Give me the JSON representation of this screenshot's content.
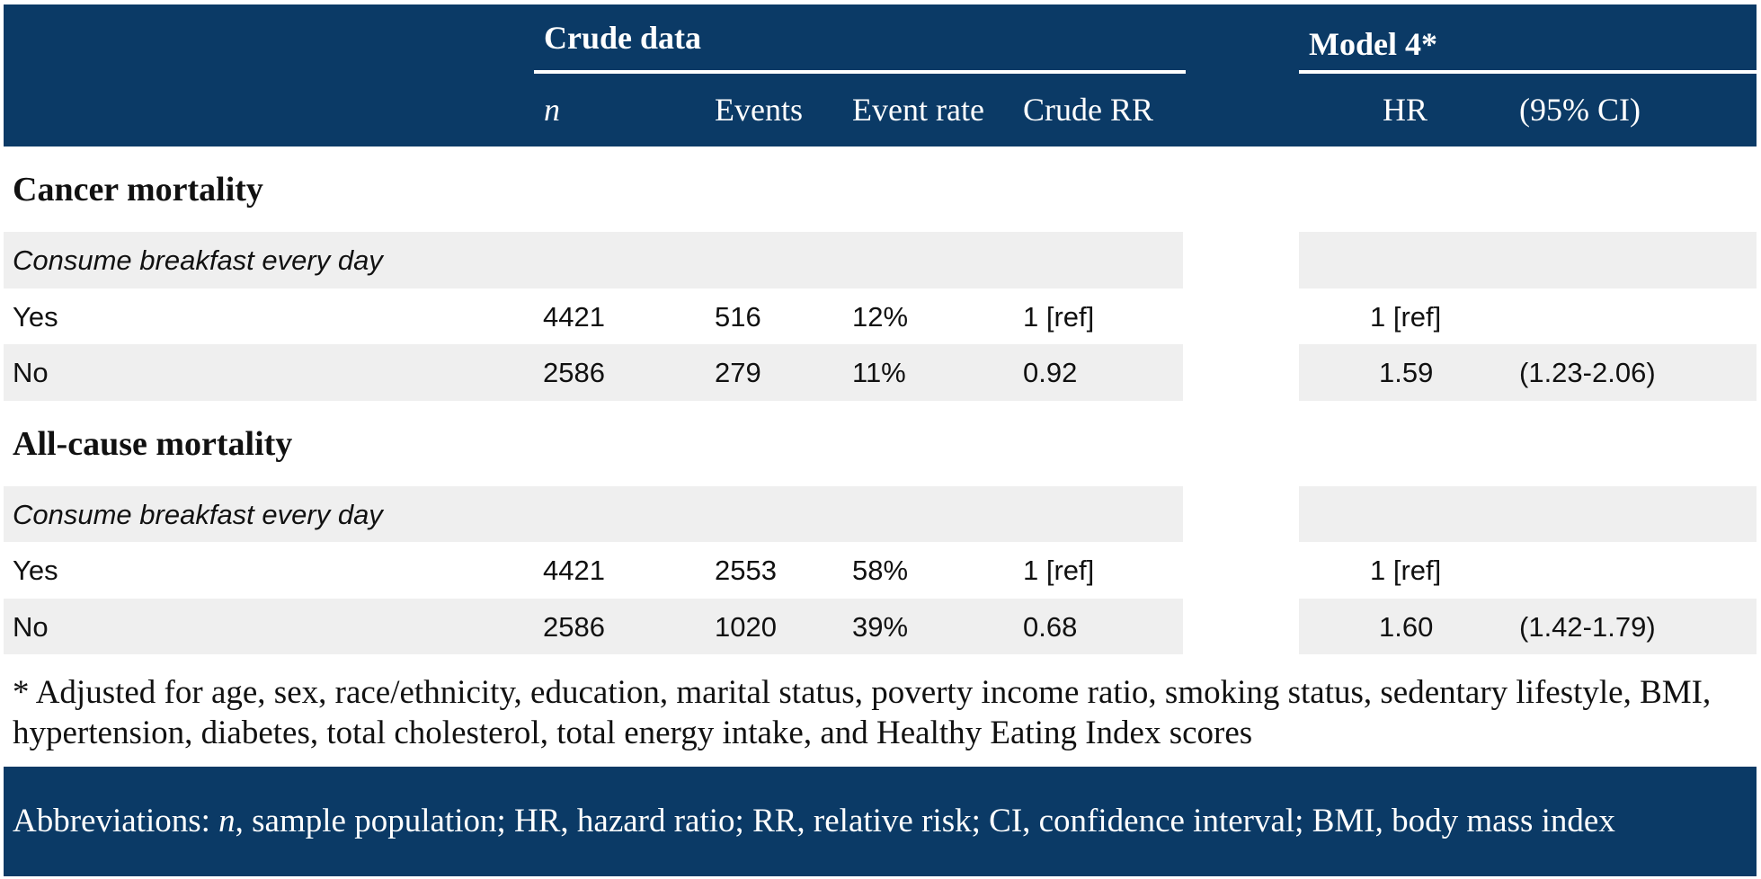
{
  "header": {
    "groups": [
      "Crude data",
      "Model 4*"
    ],
    "columns": [
      "n",
      "Events",
      "Event rate",
      "Crude RR",
      "HR",
      "(95% CI)"
    ]
  },
  "sections": [
    {
      "title": "Cancer mortality",
      "subtitle": "Consume breakfast every day",
      "rows": [
        {
          "label": "Yes",
          "cells": [
            "4421",
            "516",
            "12%",
            "1 [ref]",
            "1 [ref]"
          ]
        },
        {
          "label": "No",
          "cells": [
            "2586",
            "279",
            "11%",
            "0.92",
            "1.59",
            "(1.23-2.06)"
          ]
        }
      ]
    },
    {
      "title": "All-cause mortality",
      "subtitle": "Consume breakfast every day",
      "rows": [
        {
          "label": "Yes",
          "cells": [
            "4421",
            "2553",
            "58%",
            "1 [ref]",
            "1 [ref]"
          ]
        },
        {
          "label": "No",
          "cells": [
            "2586",
            "1020",
            "39%",
            "0.68",
            "1.60",
            "(1.42-1.79)"
          ]
        }
      ]
    }
  ],
  "footnote": "* Adjusted for age, sex, race/ethnicity, education, marital status, poverty income ratio, smoking status, sedentary lifestyle, BMI, hypertension, diabetes, total cholesterol, total energy intake, and Healthy Eating Index scores",
  "abbreviations": [
    "Abbreviations:",
    "n",
    ", sample population; HR, hazard ratio; RR, relative risk; CI, confidence interval; BMI, body mass index"
  ]
}
